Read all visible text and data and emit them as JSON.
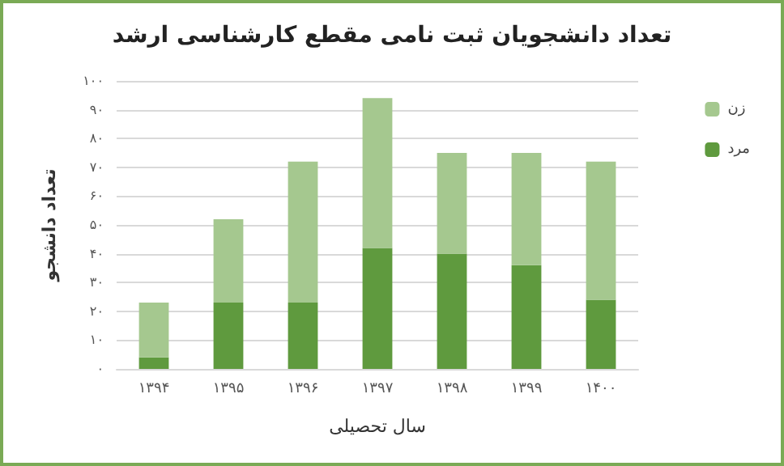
{
  "chart_data": {
    "type": "bar",
    "title": "تعداد دانشجویان ثبت نامی مقطع کارشناسی ارشد",
    "xlabel": "سال تحصیلی",
    "ylabel": "تعداد دانشجو",
    "categories": [
      "۱۳۹۴",
      "۱۳۹۵",
      "۱۳۹۶",
      "۱۳۹۷",
      "۱۳۹۸",
      "۱۳۹۹",
      "۱۴۰۰"
    ],
    "series": [
      {
        "name": "مرد",
        "color": "#5f9a3e",
        "values": [
          4,
          23,
          23,
          42,
          40,
          36,
          24
        ]
      },
      {
        "name": "زن",
        "color": "#a5c88f",
        "values": [
          19,
          29,
          49,
          52,
          35,
          39,
          48
        ]
      }
    ],
    "stacked": true,
    "ylim": [
      0,
      100
    ],
    "yticks": [
      {
        "value": 0,
        "label": "۰"
      },
      {
        "value": 10,
        "label": "۱۰"
      },
      {
        "value": 20,
        "label": "۲۰"
      },
      {
        "value": 30,
        "label": "۳۰"
      },
      {
        "value": 40,
        "label": "۴۰"
      },
      {
        "value": 50,
        "label": "۵۰"
      },
      {
        "value": 60,
        "label": "۶۰"
      },
      {
        "value": 70,
        "label": "۷۰"
      },
      {
        "value": 80,
        "label": "۸۰"
      },
      {
        "value": 90,
        "label": "۹۰"
      },
      {
        "value": 100,
        "label": "۱۰۰"
      }
    ],
    "grid": "y",
    "legend": "right"
  }
}
